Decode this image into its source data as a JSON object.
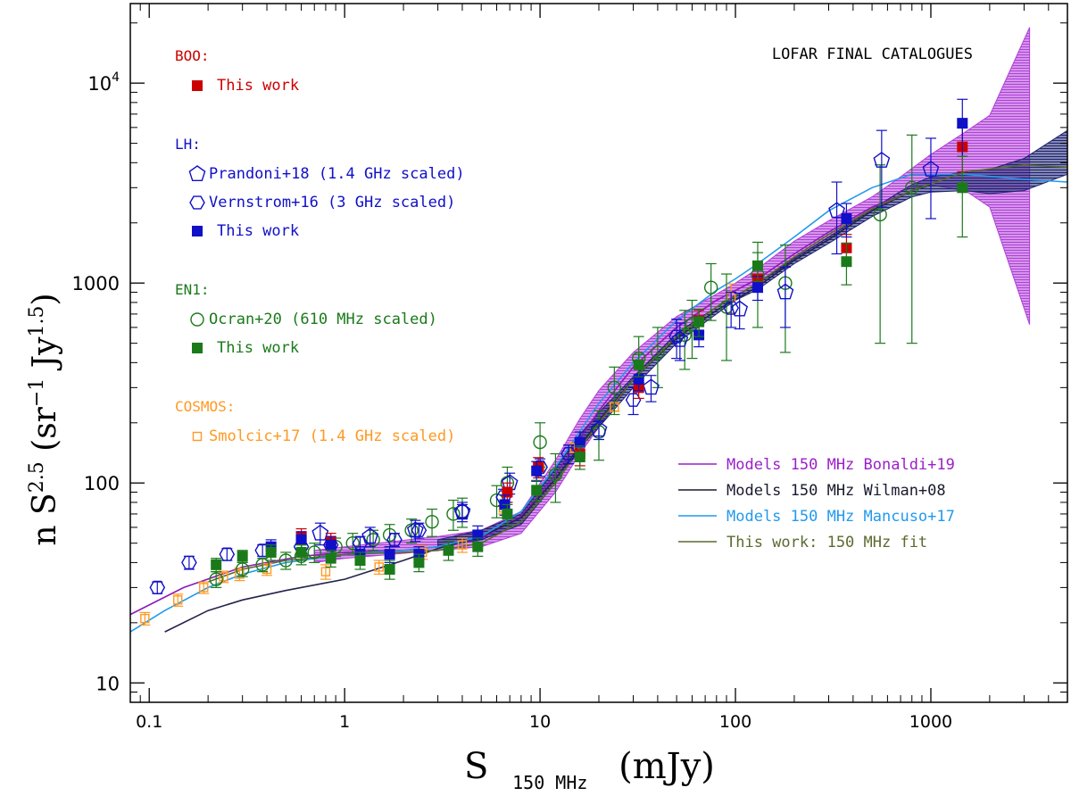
{
  "chart_data": {
    "type": "scatter",
    "title": "LOFAR FINAL CATALOGUES",
    "xlabel": {
      "main": "S",
      "sub": "150 MHz",
      "unit": "(mJy)"
    },
    "ylabel": {
      "prefix": "n S",
      "exp1": "2.5",
      "mid1": " (sr",
      "exp2": "−1",
      "mid2": " Jy",
      "exp3": "1.5",
      "suffix": ")"
    },
    "xscale": "log",
    "yscale": "log",
    "xlim": [
      0.08,
      5000
    ],
    "ylim": [
      8,
      25000
    ],
    "xticks": [
      {
        "v": 0.1,
        "label": "0.1"
      },
      {
        "v": 1,
        "label": "1"
      },
      {
        "v": 10,
        "label": "10"
      },
      {
        "v": 100,
        "label": "100"
      },
      {
        "v": 1000,
        "label": "1000"
      }
    ],
    "yticks": [
      {
        "v": 10,
        "label": "10",
        "sup": ""
      },
      {
        "v": 100,
        "label": "100",
        "sup": ""
      },
      {
        "v": 1000,
        "label": "1000",
        "sup": ""
      },
      {
        "v": 10000,
        "label": "10",
        "sup": "4"
      }
    ],
    "legend_groups": [
      {
        "header": "BOO:",
        "color": "#cc0000",
        "entries": [
          {
            "marker": "filled-square",
            "color": "#cc0000",
            "label": "This work"
          }
        ]
      },
      {
        "header": "LH:",
        "color": "#1010c8",
        "entries": [
          {
            "marker": "open-pentagon",
            "color": "#1010c8",
            "label": "Prandoni+18 (1.4 GHz scaled)"
          },
          {
            "marker": "open-hexagon",
            "color": "#1010c8",
            "label": "Vernstrom+16 (3 GHz scaled)"
          },
          {
            "marker": "filled-square",
            "color": "#1010c8",
            "label": "This work"
          }
        ]
      },
      {
        "header": "EN1:",
        "color": "#1a7a1a",
        "entries": [
          {
            "marker": "open-circle",
            "color": "#1a7a1a",
            "label": "Ocran+20 (610 MHz scaled)"
          },
          {
            "marker": "filled-square",
            "color": "#1a7a1a",
            "label": "This work"
          }
        ]
      },
      {
        "header": "COSMOS:",
        "color": "#ff9922",
        "entries": [
          {
            "marker": "open-square",
            "color": "#ff9922",
            "label": "Smolcic+17 (1.4 GHz scaled)"
          }
        ]
      }
    ],
    "model_legend": [
      {
        "label": "Models 150 MHz Bonaldi+19",
        "color": "#9b1fc8"
      },
      {
        "label": "Models 150 MHz Wilman+08",
        "color": "#1a1a2e"
      },
      {
        "label": "Models 150 MHz Mancuso+17",
        "color": "#2299ee"
      },
      {
        "label": "This work: 150 MHz fit",
        "color": "#5a6b2f"
      }
    ],
    "bands": [
      {
        "name": "Bonaldi+19",
        "color": "#b040d8",
        "x": [
          0.7,
          1,
          3,
          5,
          8,
          12,
          16,
          20,
          30,
          50,
          80,
          100,
          130,
          200,
          300,
          500,
          700,
          1000,
          1500,
          2000,
          3200
        ],
        "lower": [
          40,
          42,
          46,
          48,
          56,
          90,
          140,
          190,
          330,
          560,
          760,
          850,
          1000,
          1300,
          1650,
          2300,
          2900,
          3100,
          2900,
          2400,
          620
        ],
        "upper": [
          46,
          48,
          54,
          58,
          72,
          130,
          210,
          290,
          450,
          680,
          880,
          1000,
          1180,
          1620,
          2050,
          2700,
          3400,
          4400,
          5700,
          6900,
          19000
        ]
      },
      {
        "name": "Wilman+08",
        "color": "#1e2470",
        "x": [
          3,
          5,
          8,
          12,
          16,
          20,
          30,
          50,
          80,
          100,
          130,
          200,
          300,
          500,
          800,
          1000,
          1500,
          2000,
          3000,
          5000
        ],
        "lower": [
          48,
          52,
          62,
          100,
          150,
          190,
          300,
          500,
          700,
          820,
          930,
          1250,
          1580,
          2150,
          2700,
          2850,
          2900,
          2800,
          2900,
          3500
        ],
        "upper": [
          52,
          58,
          70,
          118,
          175,
          225,
          340,
          560,
          760,
          870,
          990,
          1330,
          1700,
          2350,
          3100,
          3400,
          3600,
          3700,
          4200,
          5800
        ]
      }
    ],
    "series": [
      {
        "name": "Bonaldi+19 central",
        "kind": "line",
        "color": "#8a1ab8",
        "x": [
          0.08,
          0.15,
          0.3,
          0.6,
          1,
          2,
          3,
          5,
          8,
          12,
          20,
          30,
          50,
          80,
          130,
          200,
          300,
          500,
          800,
          1000
        ],
        "y": [
          22,
          30,
          38,
          43,
          45,
          46,
          48,
          53,
          68,
          110,
          230,
          380,
          600,
          820,
          1050,
          1400,
          1800,
          2400,
          2900,
          3100
        ]
      },
      {
        "name": "Wilman+08",
        "kind": "line",
        "color": "#23234d",
        "x": [
          0.12,
          0.2,
          0.3,
          0.5,
          1,
          2,
          3,
          5,
          8,
          12,
          20,
          30,
          50,
          80,
          130,
          200,
          300,
          500,
          800,
          1000
        ],
        "y": [
          18,
          23,
          26,
          29,
          33,
          41,
          47,
          54,
          67,
          105,
          205,
          330,
          530,
          730,
          960,
          1300,
          1650,
          2300,
          2900,
          3100
        ]
      },
      {
        "name": "Mancuso+17",
        "kind": "line",
        "color": "#2299ee",
        "x": [
          0.08,
          0.12,
          0.2,
          0.3,
          0.5,
          1,
          2,
          3,
          5,
          8,
          12,
          20,
          30,
          50,
          80,
          100,
          130,
          200,
          300,
          500,
          800,
          1500,
          3000,
          5000
        ],
        "y": [
          18,
          23,
          30,
          35,
          40,
          44,
          46,
          48,
          54,
          72,
          120,
          250,
          400,
          650,
          920,
          1050,
          1250,
          1700,
          2300,
          3000,
          3500,
          3500,
          3300,
          3200
        ]
      },
      {
        "name": "Fit 150 MHz",
        "kind": "line",
        "color": "#5a6b2f",
        "x": [
          0.2,
          0.3,
          0.5,
          1,
          2,
          3,
          5,
          8,
          12,
          20,
          30,
          50,
          80,
          130,
          200,
          300,
          500,
          800,
          1500,
          3000,
          5000
        ],
        "y": [
          32,
          37,
          41,
          44,
          45,
          46,
          50,
          64,
          100,
          200,
          330,
          540,
          760,
          1000,
          1350,
          1750,
          2350,
          2900,
          3600,
          3900,
          3800
        ]
      },
      {
        "name": "COSMOS Smolcic+17",
        "marker": "open-square",
        "color": "#ff9922",
        "x": [
          0.095,
          0.14,
          0.19,
          0.24,
          0.29,
          0.4,
          0.8,
          1.5,
          2.5,
          4,
          6.5,
          10,
          15,
          24,
          95
        ],
        "y": [
          21,
          26,
          30,
          34,
          35,
          37,
          36,
          38,
          45,
          49,
          75,
          120,
          150,
          240,
          850
        ],
        "err": [
          1.5,
          1.8,
          2,
          2.2,
          2.5,
          2.5,
          3,
          3,
          3.5,
          4,
          5,
          6,
          8,
          12,
          140
        ]
      },
      {
        "name": "EN1 Ocran+20",
        "marker": "open-circle",
        "color": "#1a7a1a",
        "x": [
          0.22,
          0.3,
          0.38,
          0.5,
          0.6,
          0.7,
          0.9,
          1.1,
          1.4,
          1.7,
          2.2,
          2.8,
          3.6,
          4,
          6,
          6.8,
          10,
          12,
          20,
          24,
          32,
          40,
          55,
          60,
          75,
          90,
          130,
          180,
          550,
          800
        ],
        "y": [
          33,
          37,
          39,
          41,
          43,
          45,
          48,
          50,
          52,
          55,
          58,
          64,
          70,
          72,
          82,
          100,
          160,
          110,
          180,
          300,
          420,
          450,
          550,
          620,
          950,
          760,
          1100,
          1000,
          2200,
          3000
        ],
        "err": [
          3,
          3,
          3,
          4,
          4,
          5,
          5,
          6,
          6,
          7,
          8,
          10,
          12,
          12,
          15,
          20,
          40,
          30,
          50,
          80,
          120,
          150,
          180,
          200,
          300,
          350,
          500,
          550,
          1700,
          2500
        ]
      },
      {
        "name": "LH Vernstrom+16",
        "marker": "open-hexagon",
        "color": "#1010c8",
        "x": [
          0.11,
          0.16,
          0.25,
          0.38,
          0.6,
          0.85,
          1.2,
          1.8,
          2.4,
          4,
          6.5,
          10,
          14,
          30,
          50,
          95
        ],
        "y": [
          30,
          40,
          44,
          46,
          48,
          49,
          50,
          52,
          58,
          72,
          85,
          120,
          140,
          260,
          540,
          750
        ],
        "err": [
          2,
          3,
          3,
          3,
          3,
          3,
          4,
          4,
          5,
          6,
          8,
          12,
          15,
          40,
          120,
          150
        ]
      },
      {
        "name": "LH Prandoni+18",
        "marker": "open-pentagon",
        "color": "#1010c8",
        "x": [
          0.75,
          1.35,
          2.3,
          4,
          7,
          20,
          37,
          52,
          105,
          180,
          330,
          560,
          1000
        ],
        "y": [
          56,
          54,
          58,
          72,
          100,
          185,
          300,
          520,
          740,
          900,
          2300,
          4100,
          3700
        ],
        "err": [
          7,
          6,
          7,
          8,
          12,
          20,
          45,
          110,
          150,
          300,
          900,
          1700,
          1600
        ]
      },
      {
        "name": "BOO This work",
        "marker": "filled-square",
        "color": "#cc0000",
        "x": [
          0.6,
          0.85,
          6.8,
          9.8,
          16,
          32,
          65,
          130,
          370,
          1450
        ],
        "y": [
          54,
          51,
          90,
          120,
          140,
          300,
          650,
          1050,
          1500,
          4800
        ],
        "err": [
          5,
          5,
          10,
          14,
          18,
          35,
          80,
          140,
          250,
          1200
        ]
      },
      {
        "name": "LH This work",
        "marker": "filled-square",
        "color": "#1010c8",
        "x": [
          0.42,
          0.6,
          0.85,
          1.2,
          1.7,
          2.4,
          4.8,
          6.6,
          9.6,
          16,
          32,
          65,
          130,
          370,
          1450
        ],
        "y": [
          48,
          52,
          49,
          44,
          44,
          44,
          55,
          78,
          115,
          160,
          330,
          550,
          950,
          2100,
          6300
        ],
        "err": [
          4,
          5,
          5,
          4,
          4,
          4,
          6,
          9,
          13,
          20,
          40,
          70,
          130,
          400,
          2000
        ]
      },
      {
        "name": "EN1 This work",
        "marker": "filled-square",
        "color": "#1a7a1a",
        "x": [
          0.22,
          0.3,
          0.42,
          0.6,
          0.85,
          1.2,
          1.7,
          2.4,
          3.4,
          4.8,
          6.8,
          9.6,
          16,
          32,
          65,
          130,
          370,
          1450
        ],
        "y": [
          39,
          43,
          45,
          45,
          42,
          41,
          37,
          40,
          46,
          48,
          70,
          92,
          135,
          390,
          640,
          1220,
          1280,
          3000
        ],
        "err": [
          3,
          3,
          4,
          4,
          4,
          4,
          4,
          4,
          5,
          5,
          8,
          11,
          18,
          50,
          100,
          200,
          300,
          1300
        ]
      }
    ]
  }
}
